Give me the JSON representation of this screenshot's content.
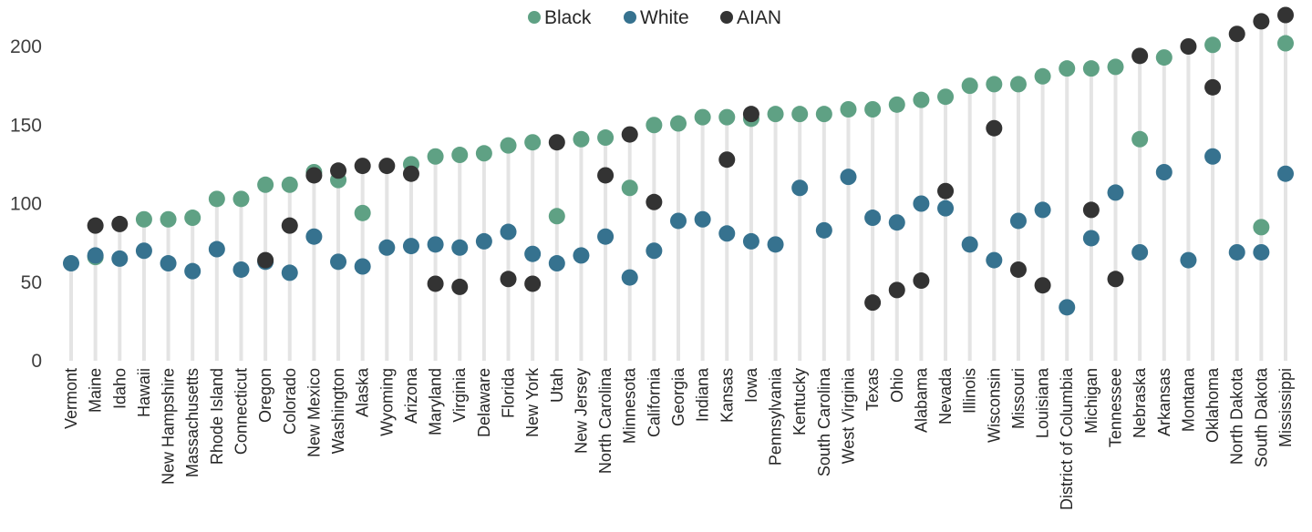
{
  "chart_data": {
    "type": "scatter",
    "title": "",
    "xlabel": "",
    "ylabel": "",
    "ylim": [
      0,
      220
    ],
    "yticks": [
      0,
      50,
      100,
      150,
      200
    ],
    "grid": false,
    "legend_position": "top-center",
    "categories": [
      "Vermont",
      "Maine",
      "Idaho",
      "Hawaii",
      "New Hampshire",
      "Massachusetts",
      "Rhode Island",
      "Connecticut",
      "Oregon",
      "Colorado",
      "New Mexico",
      "Washington",
      "Alaska",
      "Wyoming",
      "Arizona",
      "Maryland",
      "Virginia",
      "Delaware",
      "Florida",
      "New York",
      "Utah",
      "New Jersey",
      "North Carolina",
      "Minnesota",
      "California",
      "Georgia",
      "Indiana",
      "Kansas",
      "Iowa",
      "Pennsylvania",
      "Kentucky",
      "South Carolina",
      "West Virginia",
      "Texas",
      "Ohio",
      "Alabama",
      "Nevada",
      "Illinois",
      "Wisconsin",
      "Missouri",
      "Louisiana",
      "District of Columbia",
      "Michigan",
      "Tennessee",
      "Nebraska",
      "Arkansas",
      "Montana",
      "Oklahoma",
      "North Dakota",
      "South Dakota",
      "Mississippi"
    ],
    "series": [
      {
        "name": "Black",
        "color": "#5fa184",
        "values": [
          null,
          66,
          null,
          90,
          90,
          91,
          103,
          103,
          112,
          112,
          120,
          115,
          94,
          null,
          125,
          130,
          131,
          132,
          137,
          139,
          92,
          141,
          142,
          110,
          150,
          151,
          155,
          155,
          154,
          157,
          157,
          157,
          160,
          160,
          163,
          166,
          168,
          175,
          176,
          176,
          181,
          186,
          186,
          187,
          141,
          193,
          null,
          201,
          null,
          85,
          202
        ]
      },
      {
        "name": "White",
        "color": "#36728f",
        "values": [
          62,
          67,
          65,
          70,
          62,
          57,
          71,
          58,
          63,
          56,
          79,
          63,
          60,
          72,
          73,
          74,
          72,
          76,
          82,
          68,
          62,
          67,
          79,
          53,
          70,
          89,
          90,
          81,
          76,
          74,
          110,
          83,
          117,
          91,
          88,
          100,
          97,
          74,
          64,
          89,
          96,
          34,
          78,
          107,
          69,
          120,
          64,
          130,
          69,
          69,
          119
        ]
      },
      {
        "name": "AIAN",
        "color": "#333333",
        "values": [
          null,
          86,
          87,
          null,
          null,
          null,
          null,
          null,
          64,
          86,
          118,
          121,
          124,
          124,
          119,
          49,
          47,
          null,
          52,
          49,
          139,
          null,
          118,
          144,
          101,
          null,
          null,
          128,
          157,
          null,
          null,
          null,
          null,
          37,
          45,
          51,
          108,
          null,
          148,
          58,
          48,
          null,
          96,
          52,
          194,
          null,
          200,
          174,
          208,
          216,
          220
        ]
      }
    ]
  }
}
